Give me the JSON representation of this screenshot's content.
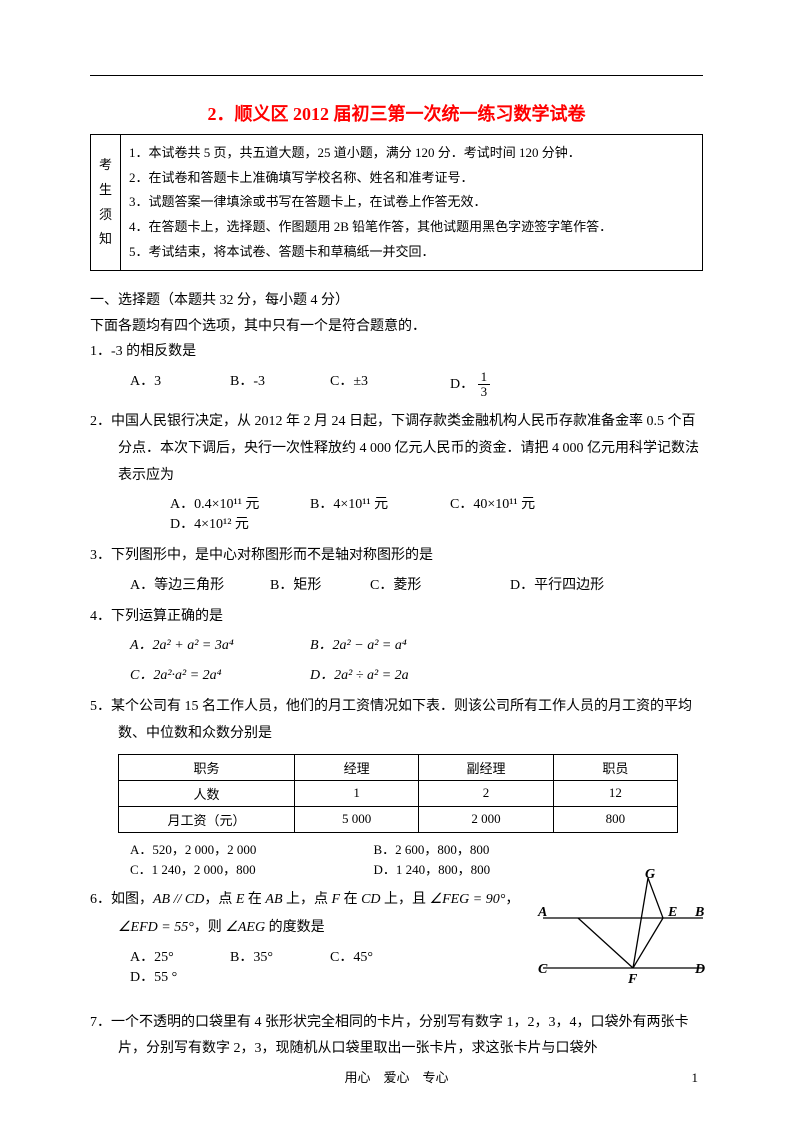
{
  "title": "2．顺义区 2012 届初三第一次统一练习数学试卷",
  "notice": {
    "side": "考生须知",
    "items": [
      "1．本试卷共 5 页，共五道大题，25 道小题，满分 120 分．考试时间 120 分钟．",
      "2．在试卷和答题卡上准确填写学校名称、姓名和准考证号．",
      "3．试题答案一律填涂或书写在答题卡上，在试卷上作答无效．",
      "4．在答题卡上，选择题、作图题用 2B 铅笔作答，其他试题用黑色字迹签字笔作答．",
      "5．考试结束，将本试卷、答题卡和草稿纸一并交回．"
    ]
  },
  "section1": {
    "head": "一、选择题（本题共 32 分，每小题 4 分）",
    "sub": "下面各题均有四个选项，其中只有一个是符合题意的．"
  },
  "q1": {
    "text": "1．-3 的相反数是",
    "optA": "A．3",
    "optB": "B．-3",
    "optC_prefix": "C．",
    "optC_val": "±3",
    "optD_prefix": "D．",
    "optD_num": "1",
    "optD_den": "3"
  },
  "q2": {
    "text": "2．中国人民银行决定，从 2012 年 2 月 24 日起，下调存款类金融机构人民币存款准备金率 0.5 个百分点．本次下调后，央行一次性释放约 4 000 亿元人民币的资金．请把 4 000 亿元用科学记数法表示应为",
    "optA": "A．0.4×10¹¹ 元",
    "optB": "B．4×10¹¹ 元",
    "optC": "C．40×10¹¹ 元",
    "optD": "D．4×10¹² 元"
  },
  "q3": {
    "text": "3．下列图形中，是中心对称图形而不是轴对称图形的是",
    "optA": "A．等边三角形",
    "optB": "B．矩形",
    "optC": "C．菱形",
    "optD": "D．平行四边形"
  },
  "q4": {
    "text": "4．下列运算正确的是",
    "optA": "A．2a² + a² = 3a⁴",
    "optB": "B．2a² − a² = a⁴",
    "optC": "C．2a²·a² = 2a⁴",
    "optD": "D．2a² ÷ a² = 2a"
  },
  "q5": {
    "text": "5．某个公司有 15 名工作人员，他们的月工资情况如下表．则该公司所有工作人员的月工资的平均数、中位数和众数分别是",
    "table": {
      "columns": [
        "职务",
        "经理",
        "副经理",
        "职员"
      ],
      "rows": [
        [
          "人数",
          "1",
          "2",
          "12"
        ],
        [
          "月工资（元）",
          "5 000",
          "2 000",
          "800"
        ]
      ],
      "col_widths": [
        "170px",
        "120px",
        "130px",
        "120px"
      ]
    },
    "ansA": "A．520，2 000，2 000",
    "ansB": "B．2 600，800，800",
    "ansC": "C．1 240，2 000，800",
    "ansD": "D．1 240，800，800"
  },
  "q6": {
    "line1_a": "6．如图，",
    "line1_b": "AB // CD",
    "line1_c": "，点 ",
    "line1_d": "E",
    "line1_e": " 在 ",
    "line1_f": "AB",
    "line1_g": " 上，点 ",
    "line1_h": "F",
    "line1_i": " 在 ",
    "line1_j": "CD",
    "line1_k": " 上，且 ",
    "line1_l": "∠FEG = 90°",
    "line1_m": "，",
    "line2_a": "∠EFD = 55°",
    "line2_b": "，则 ",
    "line2_c": "∠AEG",
    "line2_d": " 的度数是",
    "optA": "A．25°",
    "optB": "B．35°",
    "optC": "C．45°",
    "optD": "D．55 °",
    "figure": {
      "labels": {
        "A": "A",
        "B": "B",
        "C": "C",
        "D": "D",
        "E": "E",
        "F": "F",
        "G": "G"
      },
      "line_color": "#000000",
      "font_style": "italic bold"
    }
  },
  "q7": {
    "text": "7．一个不透明的口袋里有 4 张形状完全相同的卡片，分别写有数字 1，2，3，4，口袋外有两张卡片，分别写有数字 2，3，现随机从口袋里取出一张卡片，求这张卡片与口袋外"
  },
  "footer": "用心　爱心　专心",
  "page_num": "1",
  "colors": {
    "title": "#ff0000",
    "text": "#000000",
    "background": "#ffffff",
    "border": "#000000"
  }
}
